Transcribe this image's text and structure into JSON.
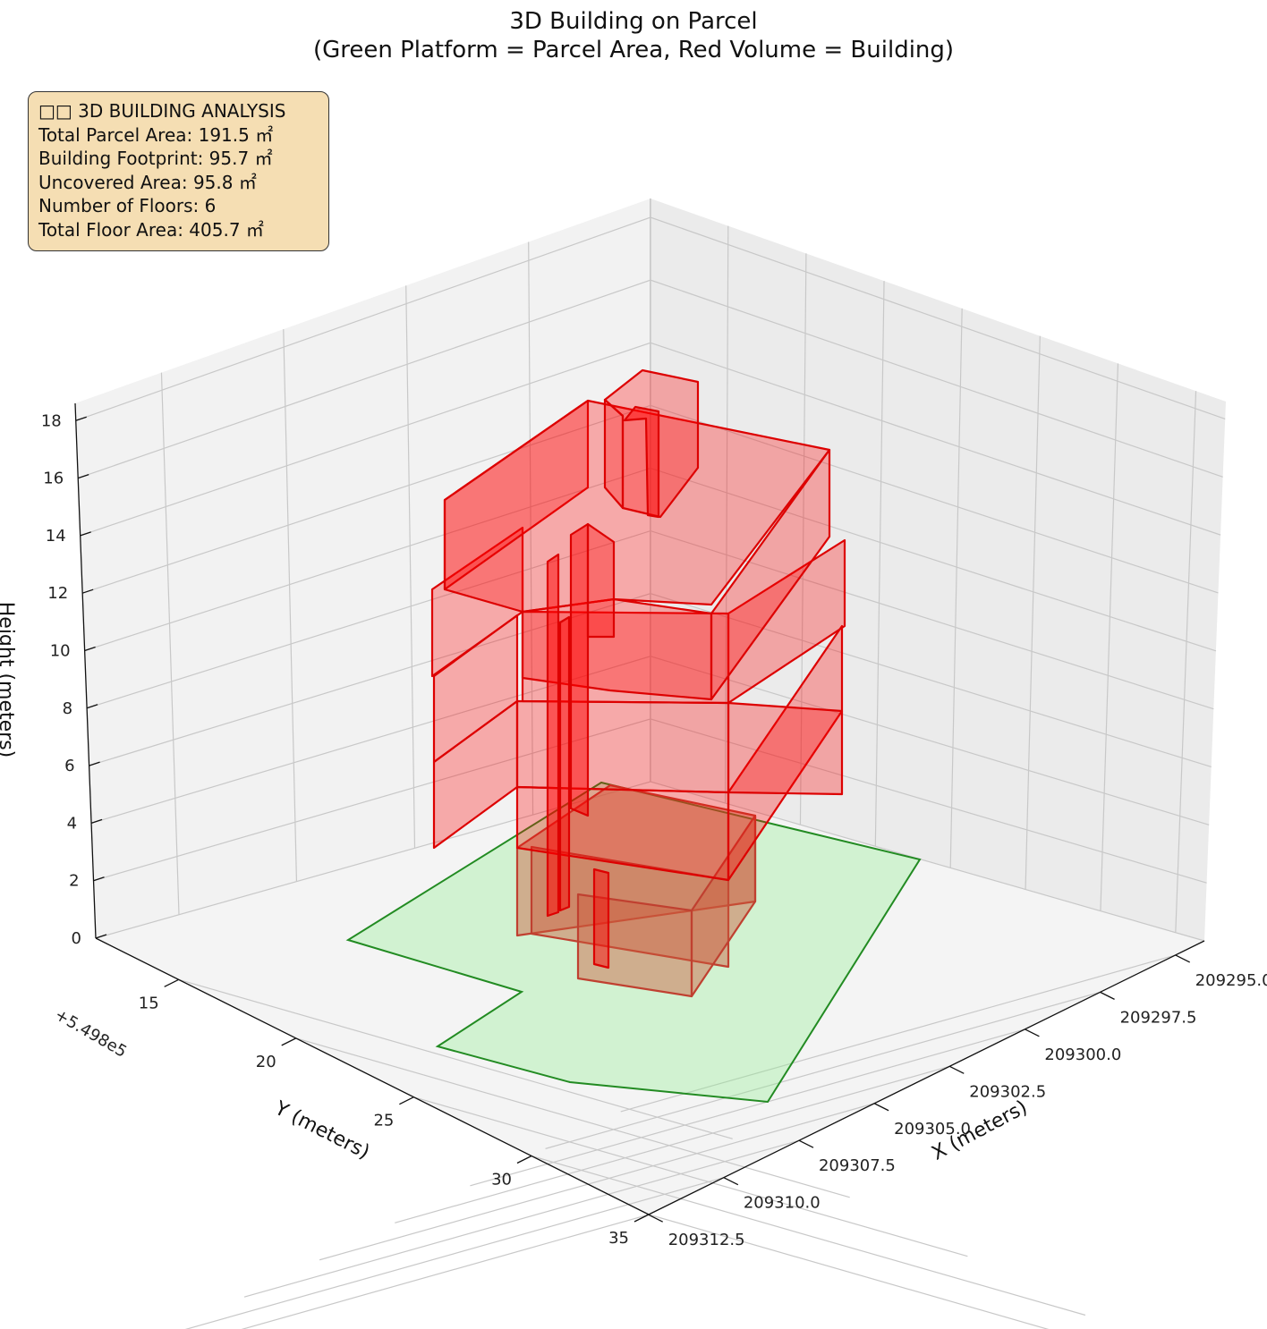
{
  "chart_data": {
    "type": "3d-polygons",
    "title_line1": "3D Building on Parcel",
    "title_line2": "(Green Platform = Parcel Area, Red Volume = Building)",
    "xlabel": "X (meters)",
    "ylabel": "Y (meters)",
    "zlabel": "Height (meters)",
    "x_ticks": [
      "209295.0",
      "209297.5",
      "209300.0",
      "209302.5",
      "209305.0",
      "209307.5",
      "209310.0",
      "209312.5"
    ],
    "y_ticks": [
      "15",
      "20",
      "25",
      "30",
      "35"
    ],
    "y_offset": "+5.498e5",
    "z_ticks": [
      "0",
      "2",
      "4",
      "6",
      "8",
      "10",
      "12",
      "14",
      "16",
      "18"
    ],
    "zlim": [
      0,
      18
    ],
    "grid": true,
    "colors": {
      "parcel_fill": "#90ee90",
      "parcel_edge": "#228b22",
      "building": "#ff0000",
      "building_edge": "#dd0000",
      "info_box": "#f5deb3"
    },
    "info_box": {
      "header": "□□ 3D BUILDING ANALYSIS",
      "lines": [
        "Total Parcel Area: 191.5 ㎡",
        "Building Footprint: 95.7 ㎡",
        "Uncovered Area: 95.8 ㎡",
        "Number of Floors: 6",
        "Total Floor Area: 405.7 ㎡"
      ]
    },
    "stats": {
      "total_parcel_area": 191.5,
      "building_footprint": 95.7,
      "uncovered_area": 95.8,
      "number_of_floors": 6,
      "total_floor_area": 405.7,
      "area_unit": "㎡"
    }
  }
}
